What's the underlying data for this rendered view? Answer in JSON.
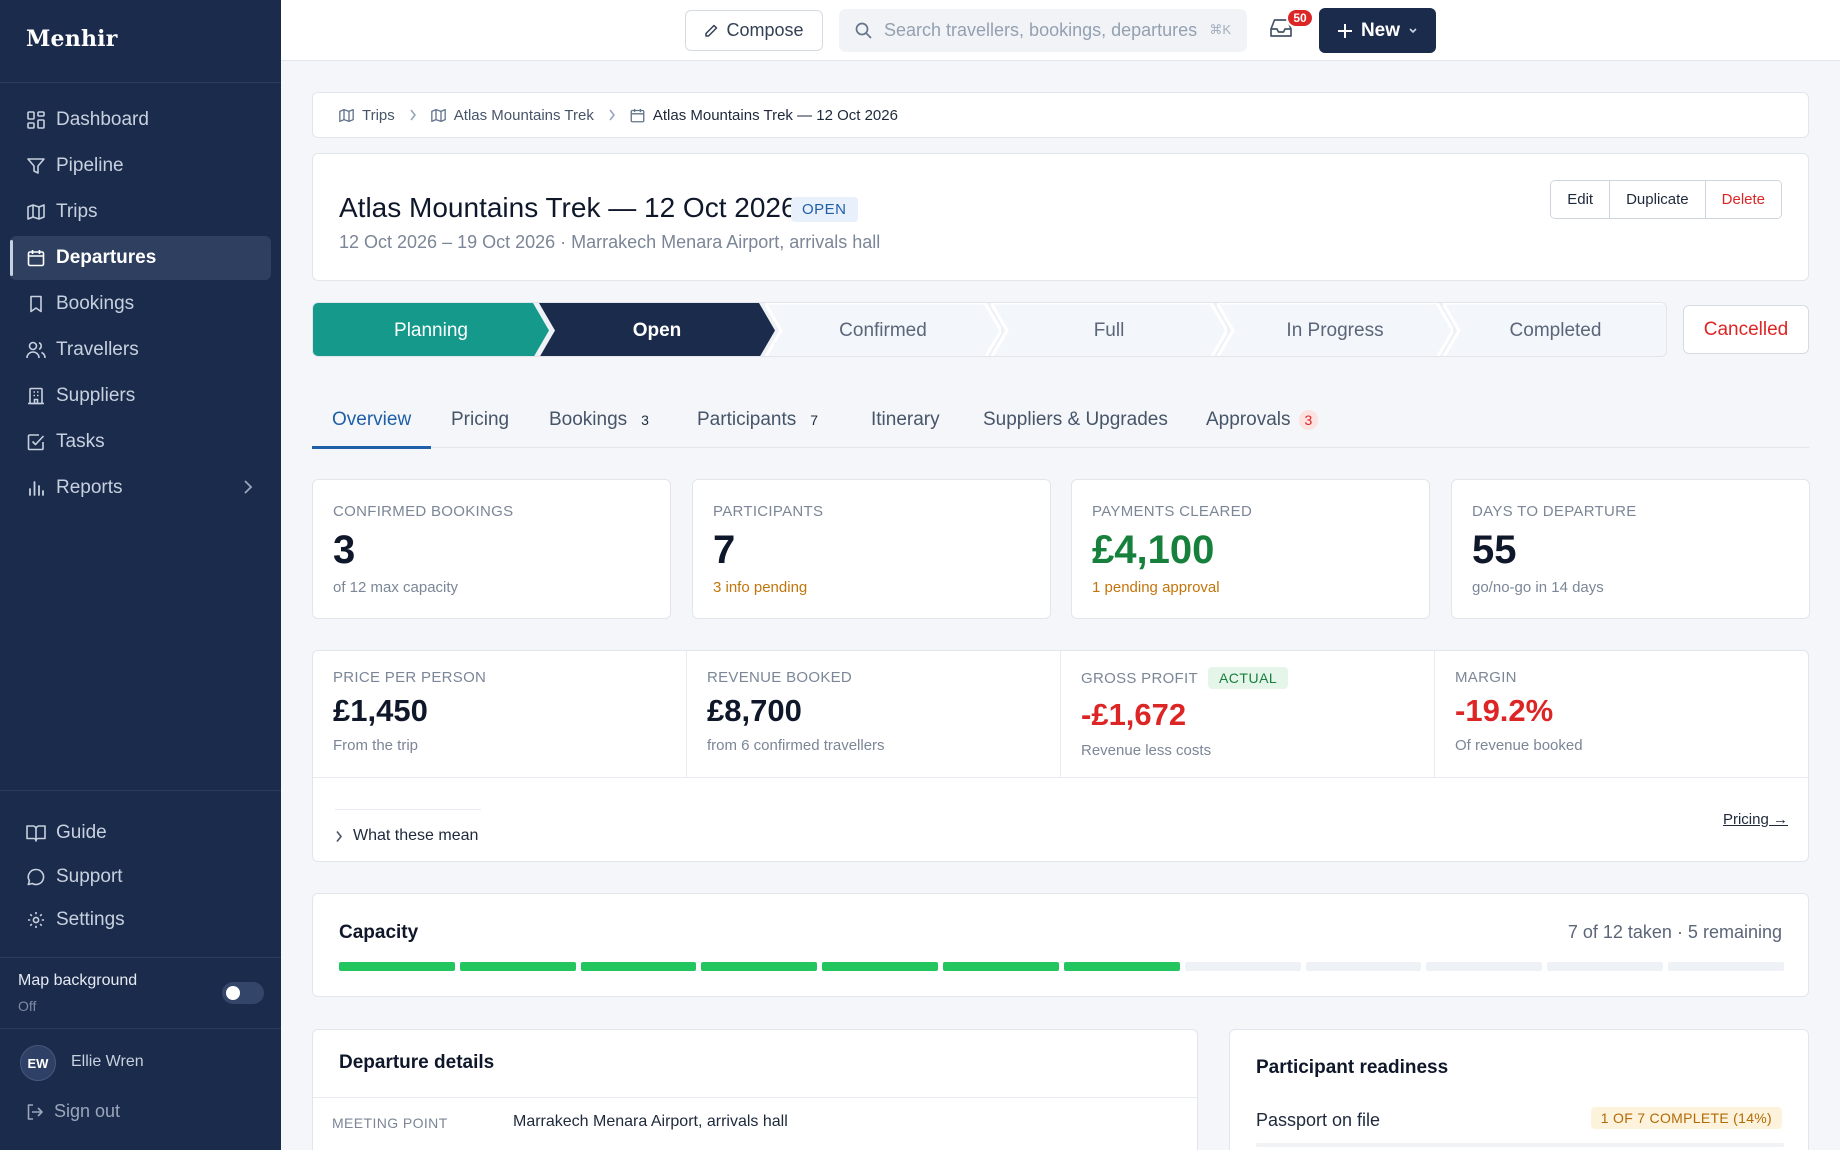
{
  "brand": {
    "name": "Menhir"
  },
  "sidebar": {
    "items": [
      {
        "label": "Dashboard",
        "icon": "dashboard-icon"
      },
      {
        "label": "Pipeline",
        "icon": "filter-icon"
      },
      {
        "label": "Trips",
        "icon": "map-icon"
      },
      {
        "label": "Departures",
        "icon": "calendar-icon",
        "active": true
      },
      {
        "label": "Bookings",
        "icon": "bookmark-icon"
      },
      {
        "label": "Travellers",
        "icon": "users-icon"
      },
      {
        "label": "Suppliers",
        "icon": "building-icon"
      },
      {
        "label": "Tasks",
        "icon": "checkbox-icon"
      },
      {
        "label": "Reports",
        "icon": "bar-chart-icon"
      }
    ],
    "footer_items": [
      {
        "label": "Guide",
        "icon": "book-icon"
      },
      {
        "label": "Support",
        "icon": "chat-icon"
      },
      {
        "label": "Settings",
        "icon": "gear-icon"
      }
    ],
    "map_background": {
      "label": "Map background",
      "state": "Off"
    },
    "user": {
      "initials": "EW",
      "name": "Ellie Wren"
    },
    "sign_out": "Sign out"
  },
  "topbar": {
    "compose": "Compose",
    "search_placeholder": "Search travellers, bookings, departures",
    "search_shortcut": "⌘K",
    "inbox_count": "50",
    "new_label": "New"
  },
  "breadcrumb": [
    {
      "label": "Trips",
      "icon": "map-icon"
    },
    {
      "label": "Atlas Mountains Trek",
      "icon": "map-icon"
    },
    {
      "label": "Atlas Mountains Trek — 12 Oct 2026",
      "icon": "calendar-icon"
    }
  ],
  "header": {
    "title": "Atlas Mountains Trek — 12 Oct 2026",
    "status": "OPEN",
    "subtitle": "12 Oct 2026 – 19 Oct 2026 · Marrakech Menara Airport, arrivals hall",
    "actions": {
      "edit": "Edit",
      "duplicate": "Duplicate",
      "delete": "Delete"
    }
  },
  "pipeline": {
    "stages": [
      {
        "label": "Planning",
        "state": "done",
        "color": "#14998a"
      },
      {
        "label": "Open",
        "state": "current",
        "color": "#1b2b4b"
      },
      {
        "label": "Confirmed",
        "state": "pending"
      },
      {
        "label": "Full",
        "state": "pending"
      },
      {
        "label": "In Progress",
        "state": "pending"
      },
      {
        "label": "Completed",
        "state": "pending"
      }
    ],
    "cancelled": "Cancelled"
  },
  "tabs": [
    {
      "label": "Overview",
      "active": true
    },
    {
      "label": "Pricing"
    },
    {
      "label": "Bookings",
      "count": "3"
    },
    {
      "label": "Participants",
      "count": "7"
    },
    {
      "label": "Itinerary"
    },
    {
      "label": "Suppliers & Upgrades"
    },
    {
      "label": "Approvals",
      "count": "3",
      "alert": true
    }
  ],
  "stats": [
    {
      "label": "CONFIRMED BOOKINGS",
      "value": "3",
      "sub": "of 12 max capacity"
    },
    {
      "label": "PARTICIPANTS",
      "value": "7",
      "sub": "3 info pending"
    },
    {
      "label": "PAYMENTS CLEARED",
      "value": "£4,100",
      "sub": "1 pending approval"
    },
    {
      "label": "DAYS TO DEPARTURE",
      "value": "55",
      "sub": "go/no-go in 14 days"
    }
  ],
  "financials": {
    "columns": [
      {
        "label": "PRICE PER PERSON",
        "value": "£1,450",
        "sub": "From the trip"
      },
      {
        "label": "REVENUE BOOKED",
        "value": "£8,700",
        "sub": "from 6 confirmed travellers"
      },
      {
        "label": "GROSS PROFIT",
        "badge": "ACTUAL",
        "value": "-£1,672",
        "sub": "Revenue less costs"
      },
      {
        "label": "MARGIN",
        "value": "-19.2%",
        "sub": "Of revenue booked"
      }
    ],
    "explain": "What these mean",
    "pricing_link": "Pricing →"
  },
  "capacity": {
    "title": "Capacity",
    "summary": "7 of 12 taken · 5 remaining",
    "taken": 7,
    "total": 12
  },
  "departure_details": {
    "title": "Departure details",
    "rows": [
      {
        "label": "MEETING POINT",
        "value": "Marrakech Menara Airport, arrivals hall"
      }
    ]
  },
  "readiness": {
    "title": "Participant readiness",
    "items": [
      {
        "label": "Passport on file",
        "status": "1 OF 7 COMPLETE (14%)",
        "fraction": 0.14
      }
    ]
  }
}
